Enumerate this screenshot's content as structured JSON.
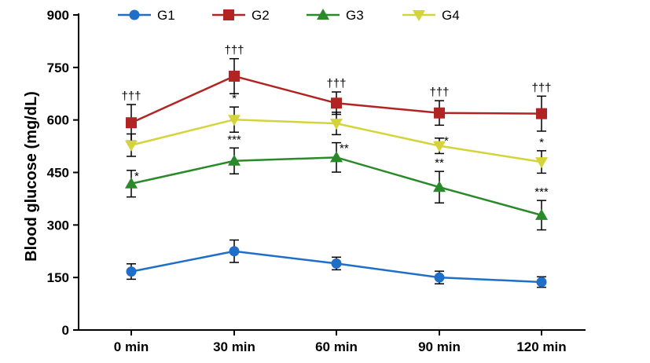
{
  "chart_data": {
    "type": "line",
    "title": "",
    "xlabel": "",
    "ylabel": "Blood glucose (mg/dL)",
    "categories": [
      "0 min",
      "30 min",
      "60 min",
      "90 min",
      "120 min"
    ],
    "ylim": [
      0,
      900
    ],
    "yticks": [
      "0",
      "150",
      "300",
      "450",
      "600",
      "750",
      "900"
    ],
    "legend_position": "top",
    "series": [
      {
        "name": "G1",
        "color": "#1f6fc9",
        "marker": "circle",
        "values": [
          167,
          225,
          190,
          150,
          137
        ],
        "errors": [
          22,
          32,
          18,
          18,
          15
        ],
        "annotations": [
          "",
          "",
          "",
          "",
          ""
        ]
      },
      {
        "name": "G2",
        "color": "#b22424",
        "marker": "square",
        "values": [
          592,
          725,
          648,
          620,
          618
        ],
        "errors": [
          52,
          50,
          32,
          35,
          50
        ],
        "annotations": [
          "†††",
          "†††",
          "†††",
          "†††",
          "†††"
        ]
      },
      {
        "name": "G3",
        "color": "#2a8a2a",
        "marker": "triangle-up",
        "values": [
          418,
          483,
          493,
          408,
          328
        ],
        "errors": [
          38,
          37,
          42,
          45,
          42
        ],
        "annotations": [
          "*",
          "***",
          "**",
          "**",
          "***"
        ]
      },
      {
        "name": "G4",
        "color": "#d4d43a",
        "marker": "triangle-down",
        "values": [
          528,
          601,
          590,
          526,
          480
        ],
        "errors": [
          32,
          36,
          32,
          22,
          32
        ],
        "annotations": [
          "",
          "*",
          "",
          "*",
          "*"
        ]
      }
    ]
  }
}
